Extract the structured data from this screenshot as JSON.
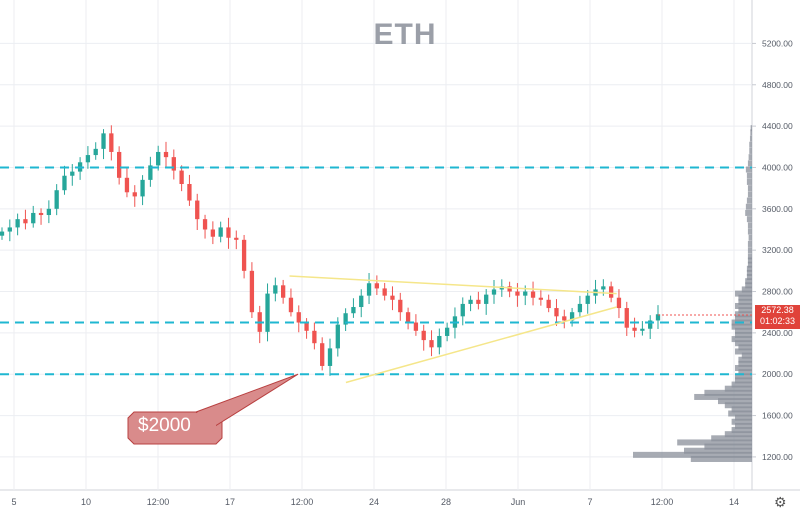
{
  "chart_data": {
    "type": "candlestick",
    "title": "ETH",
    "y_axis": {
      "ticks": [
        "5200.00",
        "4800.00",
        "4400.00",
        "4000.00",
        "3600.00",
        "3200.00",
        "2800.00",
        "2400.00",
        "2000.00",
        "1600.00",
        "1200.00"
      ],
      "tick_values": [
        5200,
        4800,
        4400,
        4000,
        3600,
        3200,
        2800,
        2400,
        2000,
        1600,
        1200
      ],
      "ylim": [
        880,
        5620
      ],
      "scale": "linear",
      "position": "right"
    },
    "x_axis": {
      "ticks": [
        "5",
        "10",
        "12:00",
        "17",
        "12:00",
        "24",
        "28",
        "Jun",
        "7",
        "12:00",
        "14"
      ]
    },
    "price_series": [
      3380,
      3420,
      3500,
      3460,
      3560,
      3540,
      3600,
      3780,
      3920,
      3960,
      4050,
      4120,
      4180,
      4330,
      4150,
      3900,
      3760,
      3720,
      3880,
      4020,
      4150,
      4100,
      3970,
      3840,
      3680,
      3500,
      3400,
      3330,
      3420,
      3320,
      3300,
      3000,
      2600,
      2410,
      2780,
      2860,
      2740,
      2600,
      2500,
      2420,
      2300,
      2080,
      2250,
      2480,
      2590,
      2650,
      2760,
      2880,
      2830,
      2760,
      2720,
      2600,
      2500,
      2420,
      2330,
      2260,
      2370,
      2450,
      2560,
      2680,
      2720,
      2680,
      2770,
      2820,
      2850,
      2800,
      2760,
      2800,
      2740,
      2720,
      2640,
      2560,
      2520,
      2600,
      2680,
      2760,
      2820,
      2850,
      2740,
      2640,
      2450,
      2420,
      2440,
      2520,
      2580
    ],
    "current_price": {
      "value": "2572.38",
      "countdown": "01:02:33"
    },
    "horizontal_levels": [
      4000,
      2500,
      2000
    ],
    "triangle": {
      "upper": [
        [
          0.385,
          2950
        ],
        [
          0.82,
          2780
        ]
      ],
      "lower": [
        [
          0.46,
          1920
        ],
        [
          0.82,
          2650
        ]
      ]
    },
    "callout": {
      "label": "$2000",
      "price": 2000
    },
    "volume_profile": [
      [
        1180,
        0.18
      ],
      [
        1220,
        0.35
      ],
      [
        1260,
        0.2
      ],
      [
        1300,
        0.14
      ],
      [
        1340,
        0.22
      ],
      [
        1380,
        0.12
      ],
      [
        1420,
        0.08
      ],
      [
        1460,
        0.06
      ],
      [
        1500,
        0.05
      ],
      [
        1540,
        0.06
      ],
      [
        1580,
        0.05
      ],
      [
        1620,
        0.07
      ],
      [
        1660,
        0.06
      ],
      [
        1700,
        0.08
      ],
      [
        1740,
        0.1
      ],
      [
        1780,
        0.17
      ],
      [
        1820,
        0.14
      ],
      [
        1860,
        0.08
      ],
      [
        1900,
        0.06
      ],
      [
        1940,
        0.05
      ],
      [
        1980,
        0.05
      ],
      [
        2020,
        0.04
      ],
      [
        2060,
        0.05
      ],
      [
        2100,
        0.04
      ],
      [
        2140,
        0.04
      ],
      [
        2180,
        0.03
      ],
      [
        2220,
        0.05
      ],
      [
        2260,
        0.04
      ],
      [
        2300,
        0.05
      ],
      [
        2340,
        0.06
      ],
      [
        2380,
        0.05
      ],
      [
        2420,
        0.05
      ],
      [
        2460,
        0.06
      ],
      [
        2500,
        0.06
      ],
      [
        2540,
        0.05
      ],
      [
        2580,
        0.05
      ],
      [
        2620,
        0.04
      ],
      [
        2660,
        0.05
      ],
      [
        2700,
        0.04
      ],
      [
        2740,
        0.04
      ],
      [
        2780,
        0.05
      ],
      [
        2820,
        0.03
      ],
      [
        2860,
        0.02
      ],
      [
        2900,
        0.02
      ],
      [
        2940,
        0.015
      ],
      [
        2980,
        0.015
      ],
      [
        3020,
        0.015
      ],
      [
        3060,
        0.012
      ],
      [
        3100,
        0.012
      ],
      [
        3140,
        0.012
      ],
      [
        3200,
        0.012
      ],
      [
        3260,
        0.012
      ],
      [
        3320,
        0.01
      ],
      [
        3380,
        0.012
      ],
      [
        3440,
        0.012
      ],
      [
        3500,
        0.015
      ],
      [
        3560,
        0.02
      ],
      [
        3620,
        0.018
      ],
      [
        3680,
        0.015
      ],
      [
        3740,
        0.012
      ],
      [
        3800,
        0.012
      ],
      [
        3860,
        0.015
      ],
      [
        3920,
        0.015
      ],
      [
        3980,
        0.018
      ],
      [
        4040,
        0.012
      ],
      [
        4100,
        0.01
      ],
      [
        4160,
        0.008
      ],
      [
        4220,
        0.008
      ],
      [
        4280,
        0.006
      ],
      [
        4340,
        0.005
      ],
      [
        4380,
        0.004
      ]
    ],
    "colors": {
      "up": "#26a69a",
      "down": "#ef5350",
      "level_line": "#1fb7d1",
      "triangle": "#f5e68a",
      "callout_fill": "#d98b8b",
      "callout_border": "#b84040",
      "volume_profile": "#8a8f99",
      "grid": "#eceef2",
      "axis_text": "#555b66"
    },
    "grid": true
  },
  "ui": {
    "watermark": "ETH",
    "settings_icon": "gear-icon"
  }
}
